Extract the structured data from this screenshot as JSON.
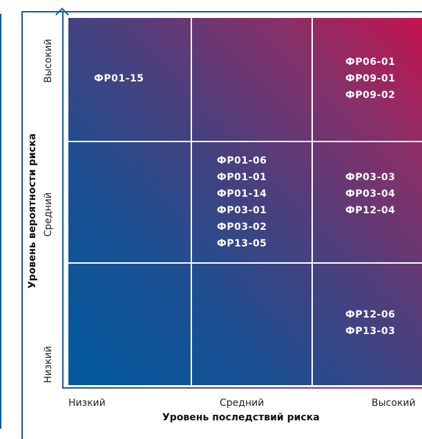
{
  "matrix": {
    "x_axis_title": "Уровень последствий риска",
    "y_axis_title": "Уровень вероятности риска",
    "x_levels": [
      "Низкий",
      "Средний",
      "Высокий"
    ],
    "y_levels": [
      "Высокий",
      "Средний",
      "Низкий"
    ],
    "cells": {
      "high_low": [
        "ФР01-15"
      ],
      "high_mid": [],
      "high_high": [
        "ФР06-01",
        "ФР09-01",
        "ФР09-02"
      ],
      "mid_low": [],
      "mid_mid": [
        "ФР01-06",
        "ФР01-01",
        "ФР01-14",
        "ФР03-01",
        "ФР03-02",
        "ФР13-05"
      ],
      "mid_high": [
        "ФР03-03",
        "ФР03-04",
        "ФР12-04"
      ],
      "low_low": [],
      "low_mid": [],
      "low_high": [
        "ФР12-06",
        "ФР13-03"
      ]
    },
    "colors": {
      "low_corner": "#005a9e",
      "high_corner": "#c4134e",
      "axis": "#0d5a9e"
    }
  }
}
